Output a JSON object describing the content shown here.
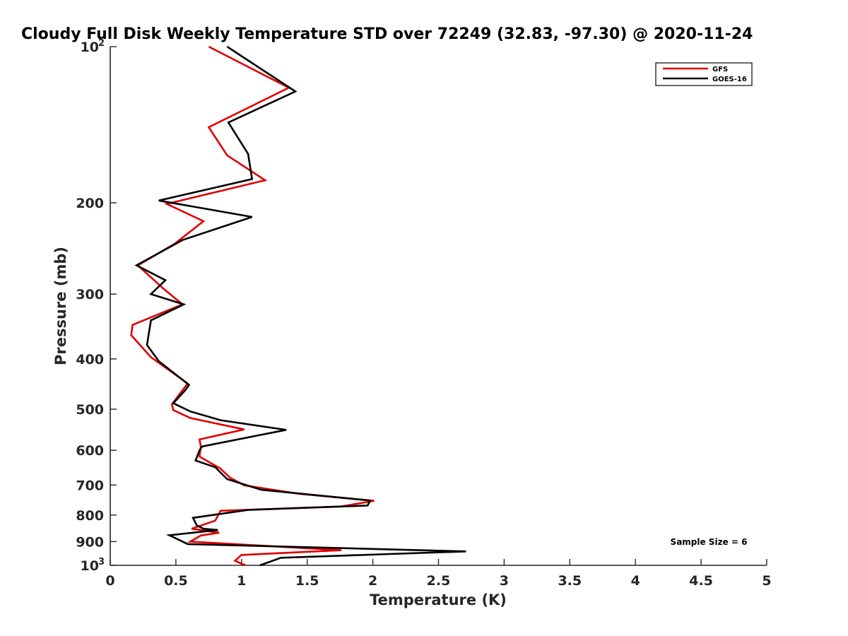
{
  "chart_data": {
    "type": "line",
    "title": "Cloudy Full Disk Weekly Temperature STD over 72249 (32.83, -97.30) @ 2020-11-24",
    "xlabel": "Temperature (K)",
    "ylabel": "Pressure (mb)",
    "xlim": [
      0,
      5
    ],
    "ylim": [
      100,
      1000
    ],
    "yscale": "log",
    "y_reversed": true,
    "grid": false,
    "legend_position": "top-right",
    "xticks": [
      0,
      0.5,
      1,
      1.5,
      2,
      2.5,
      3,
      3.5,
      4,
      4.5,
      5
    ],
    "xtick_labels": [
      "0",
      "0.5",
      "1",
      "1.5",
      "2",
      "2.5",
      "3",
      "3.5",
      "4",
      "4.5",
      "5"
    ],
    "yticks": [
      100,
      200,
      300,
      400,
      500,
      600,
      700,
      800,
      900,
      1000
    ],
    "ytick_labels": [
      {
        "base": "10",
        "sup": "2"
      },
      {
        "base": "200",
        "sup": ""
      },
      {
        "base": "300",
        "sup": ""
      },
      {
        "base": "400",
        "sup": ""
      },
      {
        "base": "500",
        "sup": ""
      },
      {
        "base": "600",
        "sup": ""
      },
      {
        "base": "700",
        "sup": ""
      },
      {
        "base": "800",
        "sup": ""
      },
      {
        "base": "900",
        "sup": ""
      },
      {
        "base": "10",
        "sup": "3"
      }
    ],
    "annotation": "Sample Size = 6",
    "series": [
      {
        "name": "GFS",
        "color": "#e00000",
        "points": [
          [
            0.75,
            100
          ],
          [
            1.36,
            120
          ],
          [
            0.75,
            143
          ],
          [
            0.89,
            162
          ],
          [
            1.18,
            181
          ],
          [
            0.43,
            201
          ],
          [
            0.71,
            217
          ],
          [
            0.49,
            240
          ],
          [
            0.21,
            264
          ],
          [
            0.4,
            292
          ],
          [
            0.55,
            314
          ],
          [
            0.17,
            344
          ],
          [
            0.16,
            360
          ],
          [
            0.31,
            397
          ],
          [
            0.59,
            446
          ],
          [
            0.47,
            489
          ],
          [
            0.48,
            502
          ],
          [
            0.61,
            520
          ],
          [
            1.02,
            547
          ],
          [
            0.68,
            572
          ],
          [
            0.69,
            590
          ],
          [
            0.68,
            617
          ],
          [
            0.84,
            651
          ],
          [
            0.91,
            677
          ],
          [
            1.02,
            701
          ],
          [
            1.44,
            728
          ],
          [
            2.01,
            751
          ],
          [
            1.76,
            770
          ],
          [
            0.84,
            785
          ],
          [
            0.8,
            820
          ],
          [
            0.62,
            850
          ],
          [
            0.83,
            865
          ],
          [
            0.69,
            876
          ],
          [
            0.61,
            900
          ],
          [
            1.76,
            935
          ],
          [
            1.0,
            955
          ],
          [
            0.95,
            980
          ],
          [
            1.03,
            1000
          ]
        ]
      },
      {
        "name": "GOES-16",
        "color": "#000000",
        "points": [
          [
            0.89,
            100
          ],
          [
            1.41,
            122
          ],
          [
            0.9,
            140
          ],
          [
            1.05,
            161
          ],
          [
            1.08,
            180
          ],
          [
            0.37,
            198
          ],
          [
            1.08,
            213
          ],
          [
            0.55,
            236
          ],
          [
            0.2,
            264
          ],
          [
            0.42,
            282
          ],
          [
            0.31,
            300
          ],
          [
            0.56,
            314
          ],
          [
            0.31,
            337
          ],
          [
            0.28,
            376
          ],
          [
            0.37,
            404
          ],
          [
            0.6,
            449
          ],
          [
            0.57,
            460
          ],
          [
            0.48,
            487
          ],
          [
            0.61,
            505
          ],
          [
            0.84,
            525
          ],
          [
            1.34,
            548
          ],
          [
            0.7,
            590
          ],
          [
            0.68,
            600
          ],
          [
            0.65,
            628
          ],
          [
            0.8,
            647
          ],
          [
            0.89,
            682
          ],
          [
            1.15,
            715
          ],
          [
            1.98,
            750
          ],
          [
            1.96,
            767
          ],
          [
            1.05,
            782
          ],
          [
            0.63,
            810
          ],
          [
            0.66,
            838
          ],
          [
            0.71,
            850
          ],
          [
            0.82,
            855
          ],
          [
            0.45,
            875
          ],
          [
            0.59,
            910
          ],
          [
            2.71,
            940
          ],
          [
            1.3,
            967
          ],
          [
            1.14,
            1000
          ]
        ]
      }
    ]
  }
}
